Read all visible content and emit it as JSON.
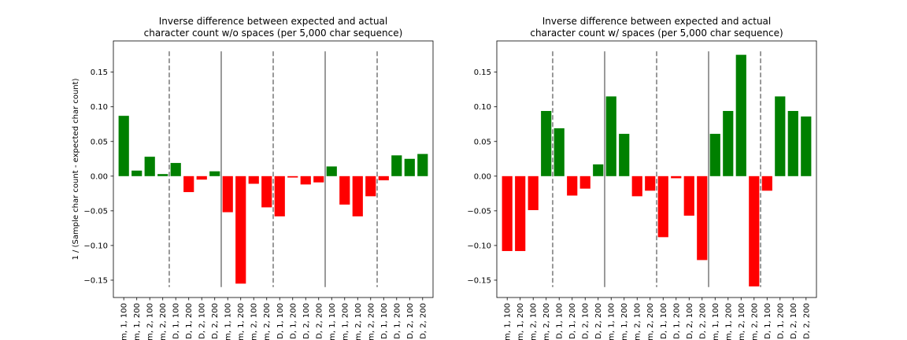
{
  "chart_data": [
    {
      "type": "bar",
      "title": "Inverse difference between expected and actual\ncharacter count w/o spaces (per 5,000 char sequence)",
      "xlabel": "",
      "ylabel": "1 / (Sample char count - expected char count)",
      "ylim": [
        -0.175,
        0.195
      ],
      "yticks": [
        0.15,
        0.1,
        0.05,
        0.0,
        -0.05,
        -0.1,
        -0.15
      ],
      "ytick_labels": [
        "0.15",
        "0.10",
        "0.05",
        "0.00",
        "−0.05",
        "−0.10",
        "−0.15"
      ],
      "categories": [
        "m, 1, 100",
        "m, 1, 200",
        "m, 2, 100",
        "m, 2, 200",
        "D, 1, 100",
        "D, 1, 200",
        "D, 2, 100",
        "D, 2, 200",
        "m, 1, 100",
        "m, 1, 200",
        "m, 2, 100",
        "m, 2, 200",
        "D, 1, 100",
        "D, 1, 200",
        "D, 2, 100",
        "D, 2, 200",
        "m, 1, 100",
        "m, 1, 200",
        "m, 2, 100",
        "m, 2, 200",
        "D, 1, 100",
        "D, 1, 200",
        "D, 2, 100",
        "D, 2, 200"
      ],
      "values": [
        0.087,
        0.008,
        0.028,
        0.003,
        0.019,
        -0.023,
        -0.005,
        0.007,
        -0.052,
        -0.155,
        -0.011,
        -0.045,
        -0.058,
        -0.002,
        -0.012,
        -0.009,
        0.014,
        -0.041,
        -0.058,
        -0.029,
        -0.006,
        0.03,
        0.025,
        0.032
      ],
      "positive_color": "#008000",
      "negative_color": "#ff0000",
      "separators": [
        {
          "after_index": 3,
          "style": "dashed"
        },
        {
          "after_index": 7,
          "style": "solid"
        },
        {
          "after_index": 11,
          "style": "dashed"
        },
        {
          "after_index": 15,
          "style": "solid"
        },
        {
          "after_index": 19,
          "style": "dashed"
        }
      ],
      "separator_range": [
        -0.16,
        0.18
      ],
      "separator_color": "#808080",
      "grid": false,
      "legend": "none"
    },
    {
      "type": "bar",
      "title": "Inverse difference between expected and actual\ncharacter count w/ spaces (per 5,000 char sequence)",
      "xlabel": "",
      "ylabel": "",
      "ylim": [
        -0.175,
        0.195
      ],
      "yticks": [
        0.15,
        0.1,
        0.05,
        0.0,
        -0.05,
        -0.1,
        -0.15
      ],
      "ytick_labels": [
        "0.15",
        "0.10",
        "0.05",
        "0.00",
        "−0.05",
        "−0.10",
        "−0.15"
      ],
      "categories": [
        "m, 1, 100",
        "m, 1, 200",
        "m, 2, 100",
        "m, 2, 200",
        "D, 1, 100",
        "D, 1, 200",
        "D, 2, 100",
        "D, 2, 200",
        "m, 1, 100",
        "m, 1, 200",
        "m, 2, 100",
        "m, 2, 200",
        "D, 1, 100",
        "D, 1, 200",
        "D, 2, 100",
        "D, 2, 200",
        "m, 1, 100",
        "m, 1, 200",
        "m, 2, 100",
        "m, 2, 200",
        "D, 1, 100",
        "D, 1, 200",
        "D, 2, 100",
        "D, 2, 200"
      ],
      "values": [
        -0.108,
        -0.108,
        -0.049,
        0.094,
        0.069,
        -0.028,
        -0.018,
        0.017,
        0.115,
        0.061,
        -0.029,
        -0.021,
        -0.088,
        -0.003,
        -0.057,
        -0.121,
        0.061,
        0.094,
        0.175,
        -0.159,
        -0.021,
        0.115,
        0.094,
        0.086
      ],
      "positive_color": "#008000",
      "negative_color": "#ff0000",
      "separators": [
        {
          "after_index": 3,
          "style": "dashed"
        },
        {
          "after_index": 7,
          "style": "solid"
        },
        {
          "after_index": 11,
          "style": "dashed"
        },
        {
          "after_index": 15,
          "style": "solid"
        },
        {
          "after_index": 19,
          "style": "dashed"
        }
      ],
      "separator_range": [
        -0.16,
        0.18
      ],
      "separator_color": "#808080",
      "grid": false,
      "legend": "none"
    }
  ]
}
